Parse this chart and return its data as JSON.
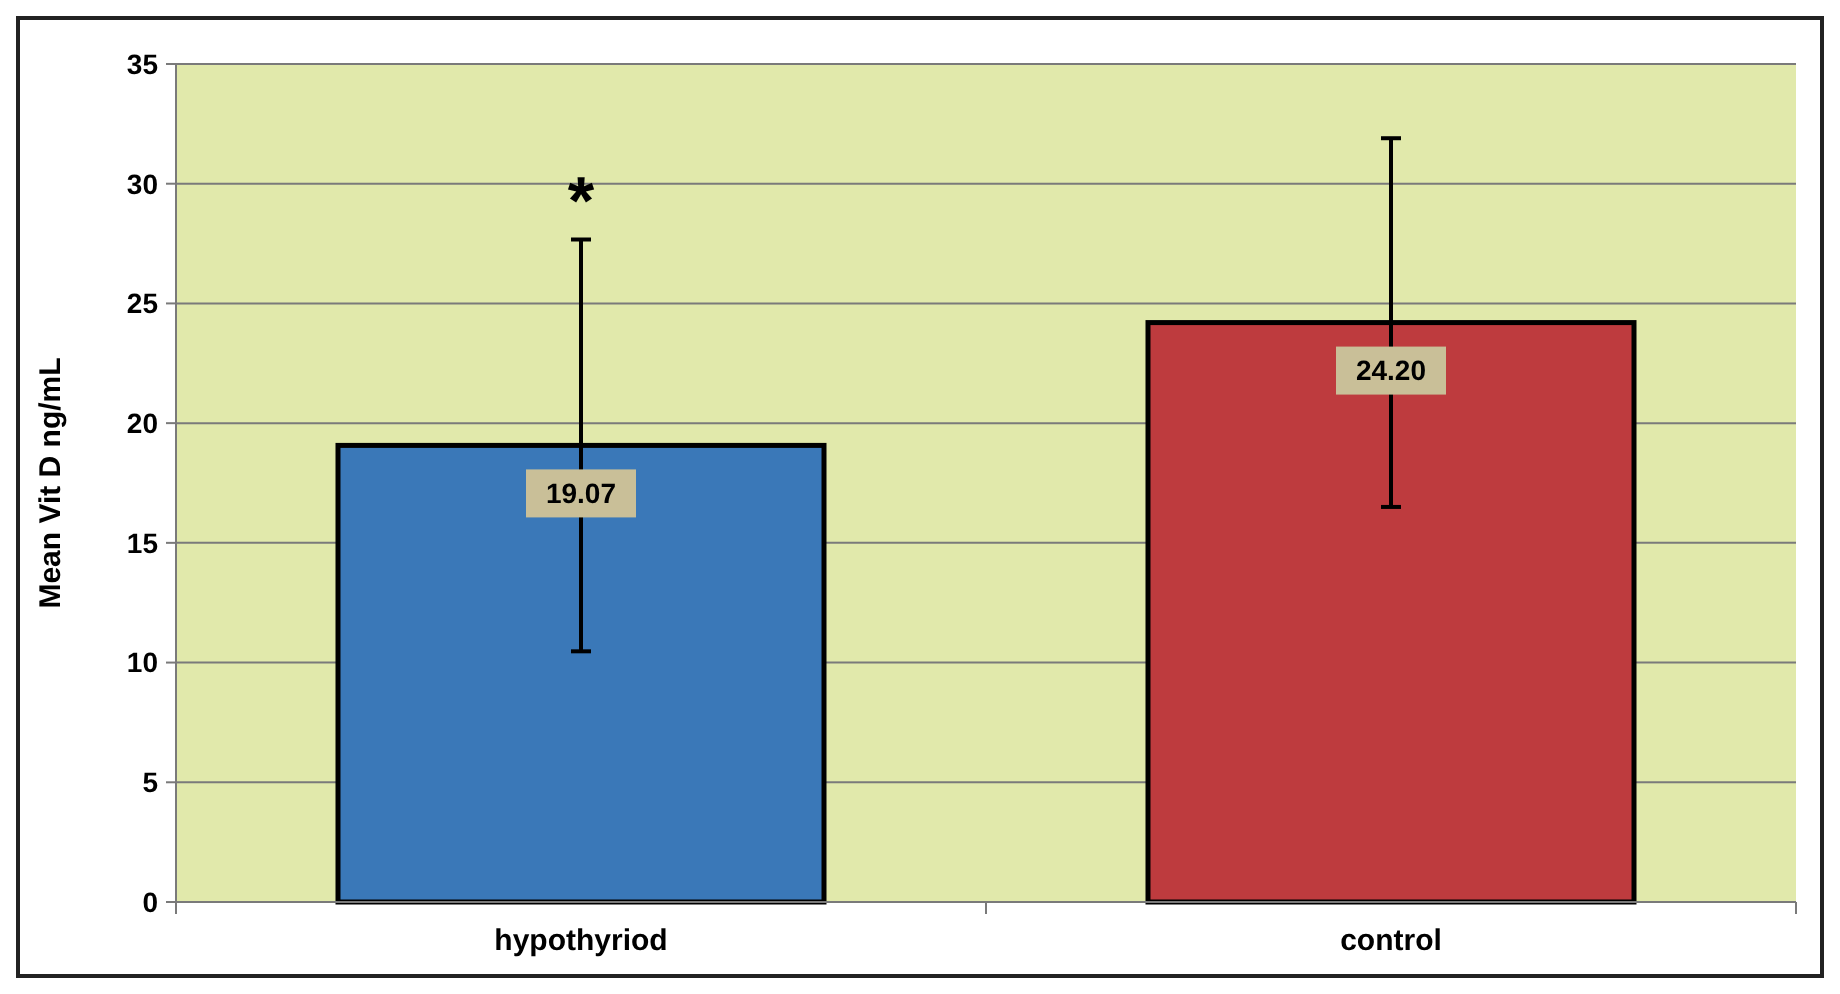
{
  "chart_data": {
    "type": "bar",
    "ylabel": "Mean Vit D ng/mL",
    "categories": [
      "hypothyriod",
      "control"
    ],
    "values": [
      19.07,
      24.2
    ],
    "colors": [
      "#3a78b8",
      "#be3b3e"
    ],
    "errors": [
      8.6,
      7.7
    ],
    "value_labels": [
      "19.07",
      "24.20"
    ],
    "annotations": [
      "*"
    ],
    "ylim": [
      0,
      35
    ],
    "yticks": [
      0,
      5,
      10,
      15,
      20,
      25,
      30,
      35
    ],
    "grid": "y"
  }
}
